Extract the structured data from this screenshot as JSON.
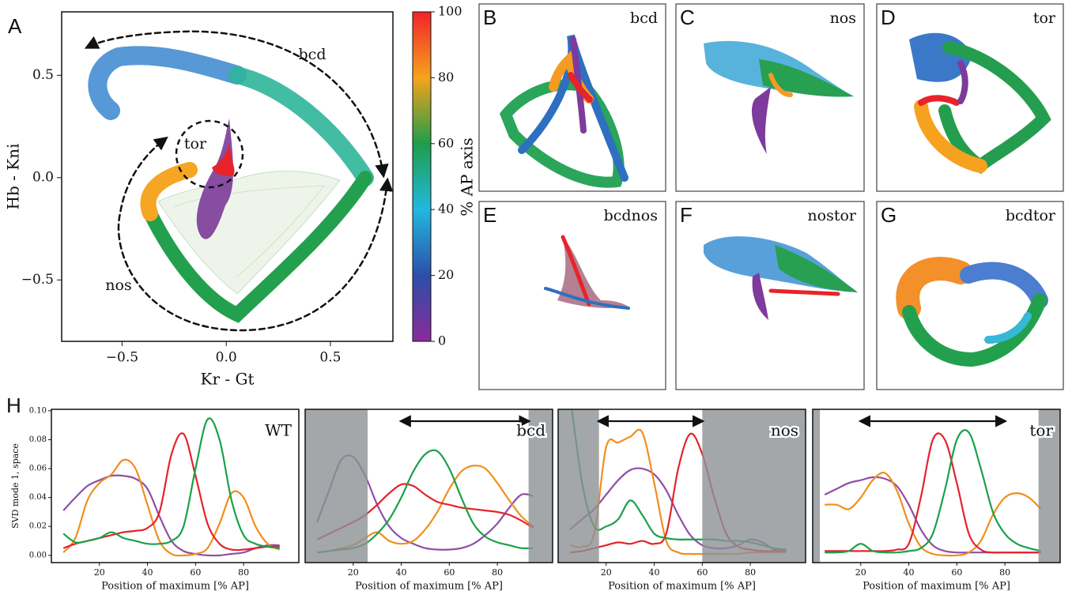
{
  "chart_data": [
    {
      "type": "trajectory",
      "panel_letter": "A",
      "xlabel": "Kr - Gt",
      "ylabel": "Hb - Kni",
      "xlim": [
        -0.79,
        0.8
      ],
      "ylim": [
        -0.8,
        0.81
      ],
      "xticks": [
        {
          "value": -0.5,
          "label": "−0.5"
        },
        {
          "value": 0,
          "label": "0.0"
        },
        {
          "value": 0.5,
          "label": "0.5"
        }
      ],
      "yticks": [
        {
          "value": -0.5,
          "label": "−0.5"
        },
        {
          "value": 0,
          "label": "0.0"
        },
        {
          "value": 0.5,
          "label": "0.5"
        }
      ],
      "annotations": [
        "bcd",
        "tor",
        "nos"
      ]
    },
    {
      "type": "colorbar",
      "label": "% AP axis",
      "ylim": [
        0,
        100
      ],
      "yticks": [
        0,
        20,
        40,
        60,
        80,
        100
      ],
      "colors": [
        "#8b2a9a",
        "#2c4fa8",
        "#21b8e0",
        "#1e9e4a",
        "#f7a21b",
        "#f0232a"
      ]
    },
    {
      "type": "line",
      "panel_letter": "H",
      "label": "WT",
      "xlabel": "Position of maximum [% AP]",
      "ylabel": "SVD mode 1, space",
      "xlim": [
        0,
        103
      ],
      "ylim": [
        -0.005,
        0.101
      ],
      "xticks": [
        20,
        40,
        60,
        80
      ],
      "yticks": [
        {
          "value": 0,
          "label": "0.00"
        },
        {
          "value": 0.02,
          "label": "0.02"
        },
        {
          "value": 0.04,
          "label": "0.04"
        },
        {
          "value": 0.06,
          "label": "0.06"
        },
        {
          "value": 0.08,
          "label": "0.08"
        },
        {
          "value": 0.1,
          "label": "0.10"
        }
      ],
      "x": [
        5,
        10,
        15,
        20,
        25,
        30,
        35,
        40,
        45,
        50,
        55,
        60,
        65,
        70,
        75,
        80,
        85,
        90,
        95
      ],
      "series": [
        {
          "color": "#8e4fa6",
          "values": [
            0.031,
            0.04,
            0.048,
            0.052,
            0.055,
            0.055,
            0.053,
            0.046,
            0.027,
            0.01,
            0.003,
            0.001,
            0.0,
            0.0,
            0.001,
            0.002,
            0.005,
            0.007,
            0.007
          ]
        },
        {
          "color": "#f28e1c",
          "values": [
            0.002,
            0.012,
            0.038,
            0.05,
            0.056,
            0.066,
            0.06,
            0.035,
            0.01,
            0.001,
            0.0,
            0.001,
            0.005,
            0.022,
            0.043,
            0.04,
            0.02,
            0.008,
            0.004
          ]
        },
        {
          "color": "#e3242b",
          "values": [
            0.005,
            0.008,
            0.01,
            0.012,
            0.014,
            0.016,
            0.017,
            0.019,
            0.03,
            0.07,
            0.084,
            0.055,
            0.022,
            0.008,
            0.004,
            0.004,
            0.005,
            0.006,
            0.006
          ]
        },
        {
          "color": "#1aa14a",
          "values": [
            0.015,
            0.009,
            0.01,
            0.012,
            0.016,
            0.012,
            0.01,
            0.008,
            0.008,
            0.01,
            0.02,
            0.06,
            0.094,
            0.08,
            0.038,
            0.014,
            0.008,
            0.006,
            0.005
          ]
        }
      ]
    },
    {
      "type": "line",
      "label": "bcd",
      "xlabel": "Position of maximum [% AP]",
      "xlim": [
        0,
        103
      ],
      "ylim": [
        -0.005,
        0.101
      ],
      "xticks": [
        20,
        40,
        60,
        80
      ],
      "shaded_regions": [
        [
          0,
          26
        ],
        [
          93,
          103
        ]
      ],
      "arrow": [
        40,
        93
      ],
      "x": [
        5,
        10,
        15,
        20,
        25,
        30,
        35,
        40,
        45,
        50,
        55,
        60,
        65,
        70,
        75,
        80,
        85,
        90,
        95
      ],
      "series": [
        {
          "color": "#8e4fa6",
          "values": [
            0.023,
            0.045,
            0.066,
            0.068,
            0.055,
            0.035,
            0.02,
            0.012,
            0.008,
            0.005,
            0.004,
            0.004,
            0.005,
            0.008,
            0.014,
            0.022,
            0.033,
            0.042,
            0.041
          ]
        },
        {
          "color": "#f28e1c",
          "values": [
            0.002,
            0.003,
            0.005,
            0.007,
            0.012,
            0.016,
            0.01,
            0.008,
            0.01,
            0.018,
            0.03,
            0.046,
            0.058,
            0.062,
            0.06,
            0.05,
            0.038,
            0.027,
            0.02
          ]
        },
        {
          "color": "#e3242b",
          "values": [
            0.011,
            0.015,
            0.019,
            0.023,
            0.028,
            0.035,
            0.043,
            0.049,
            0.048,
            0.042,
            0.037,
            0.035,
            0.033,
            0.032,
            0.031,
            0.03,
            0.028,
            0.024,
            0.019
          ]
        },
        {
          "color": "#1aa14a",
          "values": [
            0.002,
            0.003,
            0.004,
            0.005,
            0.008,
            0.015,
            0.025,
            0.04,
            0.058,
            0.07,
            0.072,
            0.06,
            0.04,
            0.022,
            0.013,
            0.009,
            0.007,
            0.005,
            0.005
          ]
        }
      ]
    },
    {
      "type": "line",
      "label": "nos",
      "xlabel": "Position of maximum [% AP]",
      "xlim": [
        0,
        103
      ],
      "ylim": [
        -0.005,
        0.101
      ],
      "xticks": [
        20,
        40,
        60,
        80
      ],
      "shaded_regions": [
        [
          0,
          17
        ],
        [
          60,
          103
        ]
      ],
      "arrow": [
        17,
        60
      ],
      "x": [
        5,
        10,
        15,
        20,
        25,
        30,
        35,
        40,
        45,
        50,
        55,
        60,
        65,
        70,
        75,
        80,
        85,
        90,
        95
      ],
      "series": [
        {
          "color": "#8e4fa6",
          "values": [
            0.018,
            0.025,
            0.032,
            0.042,
            0.052,
            0.059,
            0.06,
            0.056,
            0.045,
            0.028,
            0.014,
            0.007,
            0.005,
            0.005,
            0.007,
            0.011,
            0.009,
            0.004,
            0.003
          ]
        },
        {
          "color": "#f28e1c",
          "values": [
            0.007,
            0.006,
            0.015,
            0.075,
            0.078,
            0.082,
            0.085,
            0.05,
            0.01,
            0.002,
            0.001,
            0.001,
            0.001,
            0.001,
            0.001,
            0.002,
            0.002,
            0.002,
            0.002
          ]
        },
        {
          "color": "#e3242b",
          "values": [
            0.002,
            0.003,
            0.005,
            0.007,
            0.009,
            0.008,
            0.01,
            0.008,
            0.015,
            0.06,
            0.084,
            0.07,
            0.04,
            0.015,
            0.006,
            0.004,
            0.003,
            0.003,
            0.003
          ]
        },
        {
          "color": "#1aa14a",
          "values": [
            0.11,
            0.05,
            0.02,
            0.02,
            0.025,
            0.038,
            0.028,
            0.015,
            0.012,
            0.011,
            0.011,
            0.011,
            0.011,
            0.01,
            0.01,
            0.009,
            0.007,
            0.005,
            0.004
          ]
        }
      ]
    },
    {
      "type": "line",
      "label": "tor",
      "xlabel": "Position of maximum [% AP]",
      "xlim": [
        0,
        103
      ],
      "ylim": [
        -0.005,
        0.101
      ],
      "xticks": [
        20,
        40,
        60,
        80
      ],
      "shaded_regions": [
        [
          0,
          3
        ],
        [
          94,
          103
        ]
      ],
      "arrow": [
        20,
        80
      ],
      "x": [
        5,
        10,
        15,
        20,
        25,
        30,
        35,
        40,
        45,
        50,
        55,
        60,
        65,
        70,
        75,
        80,
        85,
        90,
        95
      ],
      "series": [
        {
          "color": "#8e4fa6",
          "values": [
            0.042,
            0.046,
            0.05,
            0.052,
            0.054,
            0.053,
            0.048,
            0.035,
            0.018,
            0.007,
            0.003,
            0.002,
            0.002,
            0.002,
            0.002,
            0.002,
            0.002,
            0.002,
            0.002
          ]
        },
        {
          "color": "#f28e1c",
          "values": [
            0.035,
            0.035,
            0.032,
            0.04,
            0.052,
            0.057,
            0.045,
            0.022,
            0.006,
            0.001,
            0.0,
            0.0,
            0.002,
            0.01,
            0.028,
            0.04,
            0.043,
            0.04,
            0.032
          ]
        },
        {
          "color": "#e3242b",
          "values": [
            0.003,
            0.003,
            0.003,
            0.003,
            0.003,
            0.003,
            0.004,
            0.008,
            0.04,
            0.08,
            0.08,
            0.05,
            0.015,
            0.004,
            0.002,
            0.002,
            0.002,
            0.002,
            0.002
          ]
        },
        {
          "color": "#1aa14a",
          "values": [
            0.002,
            0.002,
            0.003,
            0.008,
            0.003,
            0.002,
            0.002,
            0.003,
            0.005,
            0.015,
            0.045,
            0.08,
            0.085,
            0.06,
            0.03,
            0.015,
            0.008,
            0.005,
            0.003
          ]
        }
      ]
    }
  ],
  "panels": [
    {
      "letter": "B",
      "label": "bcd"
    },
    {
      "letter": "C",
      "label": "nos"
    },
    {
      "letter": "D",
      "label": "tor"
    },
    {
      "letter": "E",
      "label": "bcdnos"
    },
    {
      "letter": "F",
      "label": "nostor"
    },
    {
      "letter": "G",
      "label": "bcdtor"
    }
  ]
}
